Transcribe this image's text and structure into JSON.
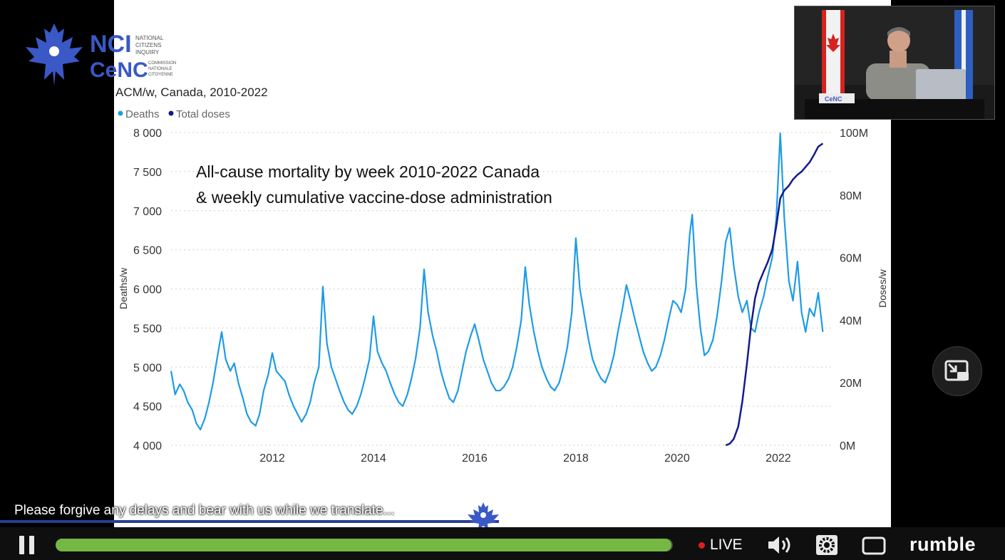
{
  "branding": {
    "logo_text_top": "NCI",
    "logo_text_bottom": "CeNC",
    "logo_small_text": [
      "NATIONAL",
      "CITIZENS",
      "INQUIRY"
    ],
    "logo_small_text_fr": [
      "COMMISSION",
      "NATIONALE",
      "CITOYENNE"
    ]
  },
  "chart_data": {
    "type": "line",
    "title": "ACM/w, Canada, 2010-2022",
    "annotation": [
      "All-cause mortality by week 2010-2022 Canada",
      "& weekly cumulative vaccine-dose administration"
    ],
    "ylabel": "Deaths/w",
    "y2label": "Doses/w",
    "ylim": [
      4000,
      8000
    ],
    "y2lim": [
      0,
      100000000
    ],
    "yticks": [
      "8 000",
      "7 500",
      "7 000",
      "6 500",
      "6 000",
      "5 500",
      "5 000",
      "4 500",
      "4 000"
    ],
    "y2ticks": [
      "100M",
      "80M",
      "60M",
      "40M",
      "20M",
      "0M"
    ],
    "xticks": [
      "2012",
      "2014",
      "2016",
      "2018",
      "2020",
      "2022"
    ],
    "grid": true,
    "legend_position": "top-left",
    "series": [
      {
        "name": "Deaths",
        "color": "#1e9be6",
        "axis": "left",
        "points": [
          [
            2010.0,
            4950
          ],
          [
            2010.08,
            4650
          ],
          [
            2010.17,
            4780
          ],
          [
            2010.25,
            4700
          ],
          [
            2010.33,
            4550
          ],
          [
            2010.42,
            4450
          ],
          [
            2010.5,
            4280
          ],
          [
            2010.58,
            4200
          ],
          [
            2010.67,
            4350
          ],
          [
            2010.75,
            4550
          ],
          [
            2010.83,
            4800
          ],
          [
            2010.92,
            5150
          ],
          [
            2011.0,
            5450
          ],
          [
            2011.08,
            5100
          ],
          [
            2011.17,
            4950
          ],
          [
            2011.25,
            5050
          ],
          [
            2011.33,
            4800
          ],
          [
            2011.42,
            4600
          ],
          [
            2011.5,
            4400
          ],
          [
            2011.58,
            4300
          ],
          [
            2011.67,
            4250
          ],
          [
            2011.75,
            4400
          ],
          [
            2011.83,
            4700
          ],
          [
            2011.92,
            4900
          ],
          [
            2012.0,
            5180
          ],
          [
            2012.08,
            4950
          ],
          [
            2012.17,
            4880
          ],
          [
            2012.25,
            4820
          ],
          [
            2012.33,
            4650
          ],
          [
            2012.42,
            4500
          ],
          [
            2012.5,
            4400
          ],
          [
            2012.58,
            4300
          ],
          [
            2012.67,
            4400
          ],
          [
            2012.75,
            4550
          ],
          [
            2012.83,
            4800
          ],
          [
            2012.92,
            5000
          ],
          [
            2013.0,
            6030
          ],
          [
            2013.08,
            5300
          ],
          [
            2013.17,
            5000
          ],
          [
            2013.25,
            4850
          ],
          [
            2013.33,
            4700
          ],
          [
            2013.42,
            4550
          ],
          [
            2013.5,
            4450
          ],
          [
            2013.58,
            4400
          ],
          [
            2013.67,
            4500
          ],
          [
            2013.75,
            4650
          ],
          [
            2013.83,
            4850
          ],
          [
            2013.92,
            5100
          ],
          [
            2014.0,
            5650
          ],
          [
            2014.08,
            5200
          ],
          [
            2014.17,
            5050
          ],
          [
            2014.25,
            4950
          ],
          [
            2014.33,
            4800
          ],
          [
            2014.42,
            4650
          ],
          [
            2014.5,
            4550
          ],
          [
            2014.58,
            4500
          ],
          [
            2014.67,
            4650
          ],
          [
            2014.75,
            4850
          ],
          [
            2014.83,
            5100
          ],
          [
            2014.92,
            5500
          ],
          [
            2015.0,
            6250
          ],
          [
            2015.08,
            5700
          ],
          [
            2015.17,
            5400
          ],
          [
            2015.25,
            5200
          ],
          [
            2015.33,
            4950
          ],
          [
            2015.42,
            4750
          ],
          [
            2015.5,
            4600
          ],
          [
            2015.58,
            4550
          ],
          [
            2015.67,
            4700
          ],
          [
            2015.75,
            4950
          ],
          [
            2015.83,
            5200
          ],
          [
            2015.92,
            5400
          ],
          [
            2016.0,
            5550
          ],
          [
            2016.08,
            5350
          ],
          [
            2016.17,
            5100
          ],
          [
            2016.25,
            4950
          ],
          [
            2016.33,
            4800
          ],
          [
            2016.42,
            4700
          ],
          [
            2016.5,
            4700
          ],
          [
            2016.58,
            4750
          ],
          [
            2016.67,
            4850
          ],
          [
            2016.75,
            5000
          ],
          [
            2016.83,
            5250
          ],
          [
            2016.92,
            5600
          ],
          [
            2017.0,
            6280
          ],
          [
            2017.08,
            5800
          ],
          [
            2017.17,
            5450
          ],
          [
            2017.25,
            5200
          ],
          [
            2017.33,
            5000
          ],
          [
            2017.42,
            4850
          ],
          [
            2017.5,
            4750
          ],
          [
            2017.58,
            4700
          ],
          [
            2017.67,
            4800
          ],
          [
            2017.75,
            5000
          ],
          [
            2017.83,
            5250
          ],
          [
            2017.92,
            5700
          ],
          [
            2018.0,
            6650
          ],
          [
            2018.08,
            6000
          ],
          [
            2018.17,
            5650
          ],
          [
            2018.25,
            5350
          ],
          [
            2018.33,
            5100
          ],
          [
            2018.42,
            4950
          ],
          [
            2018.5,
            4850
          ],
          [
            2018.58,
            4800
          ],
          [
            2018.67,
            4950
          ],
          [
            2018.75,
            5150
          ],
          [
            2018.83,
            5450
          ],
          [
            2018.92,
            5750
          ],
          [
            2019.0,
            6050
          ],
          [
            2019.08,
            5850
          ],
          [
            2019.17,
            5600
          ],
          [
            2019.25,
            5400
          ],
          [
            2019.33,
            5200
          ],
          [
            2019.42,
            5050
          ],
          [
            2019.5,
            4950
          ],
          [
            2019.58,
            5000
          ],
          [
            2019.67,
            5150
          ],
          [
            2019.75,
            5350
          ],
          [
            2019.83,
            5600
          ],
          [
            2019.92,
            5850
          ],
          [
            2020.0,
            5800
          ],
          [
            2020.08,
            5700
          ],
          [
            2020.17,
            6000
          ],
          [
            2020.25,
            6700
          ],
          [
            2020.3,
            6950
          ],
          [
            2020.38,
            6050
          ],
          [
            2020.46,
            5500
          ],
          [
            2020.54,
            5150
          ],
          [
            2020.62,
            5200
          ],
          [
            2020.71,
            5350
          ],
          [
            2020.79,
            5650
          ],
          [
            2020.88,
            6100
          ],
          [
            2020.96,
            6600
          ],
          [
            2021.04,
            6780
          ],
          [
            2021.12,
            6300
          ],
          [
            2021.21,
            5900
          ],
          [
            2021.29,
            5700
          ],
          [
            2021.38,
            5850
          ],
          [
            2021.46,
            5500
          ],
          [
            2021.54,
            5450
          ],
          [
            2021.62,
            5700
          ],
          [
            2021.71,
            5900
          ],
          [
            2021.79,
            6150
          ],
          [
            2021.88,
            6400
          ],
          [
            2021.96,
            6900
          ],
          [
            2022.04,
            7990
          ],
          [
            2022.12,
            6900
          ],
          [
            2022.21,
            6100
          ],
          [
            2022.29,
            5850
          ],
          [
            2022.38,
            6350
          ],
          [
            2022.46,
            5700
          ],
          [
            2022.54,
            5450
          ],
          [
            2022.62,
            5750
          ],
          [
            2022.71,
            5650
          ],
          [
            2022.79,
            5950
          ],
          [
            2022.88,
            5450
          ]
        ]
      },
      {
        "name": "Total doses",
        "color": "#141a8a",
        "axis": "right",
        "points": [
          [
            2020.96,
            0
          ],
          [
            2021.04,
            500000
          ],
          [
            2021.12,
            2000000
          ],
          [
            2021.21,
            6000000
          ],
          [
            2021.29,
            14000000
          ],
          [
            2021.38,
            26000000
          ],
          [
            2021.46,
            38000000
          ],
          [
            2021.54,
            47000000
          ],
          [
            2021.62,
            52000000
          ],
          [
            2021.71,
            55500000
          ],
          [
            2021.79,
            58500000
          ],
          [
            2021.88,
            62500000
          ],
          [
            2021.96,
            70000000
          ],
          [
            2022.04,
            79000000
          ],
          [
            2022.12,
            81500000
          ],
          [
            2022.21,
            83000000
          ],
          [
            2022.29,
            85000000
          ],
          [
            2022.38,
            86500000
          ],
          [
            2022.46,
            87500000
          ],
          [
            2022.54,
            89000000
          ],
          [
            2022.62,
            90500000
          ],
          [
            2022.71,
            93000000
          ],
          [
            2022.79,
            95500000
          ],
          [
            2022.88,
            96500000
          ]
        ]
      }
    ]
  },
  "caption": {
    "text": "Please forgive any delays and bear with us while we translate..."
  },
  "player": {
    "progress_fraction": 0.998,
    "live_label": "LIVE",
    "brand": "rumble"
  },
  "pip_video": {
    "desk_sign": "CeNC",
    "icons": [
      "flag-canada-icon",
      "flag-quebec-icon",
      "speaker-person",
      "laptop-icon"
    ]
  },
  "colors": {
    "accent_blue": "#2a3d9a",
    "progress_green": "#74b843",
    "live_red": "#e01e1e"
  }
}
